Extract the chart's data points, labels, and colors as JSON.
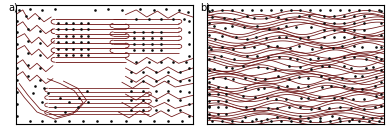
{
  "fig_width": 3.92,
  "fig_height": 1.29,
  "dpi": 100,
  "background_color": "#ffffff",
  "panel_a_label": "a)",
  "panel_b_label": "b)",
  "line_color": "#6b1010",
  "dot_color": "#0a0a0a",
  "line_width": 0.55,
  "dot_size": 3.5,
  "border_color": "#000000",
  "border_lw": 0.8
}
